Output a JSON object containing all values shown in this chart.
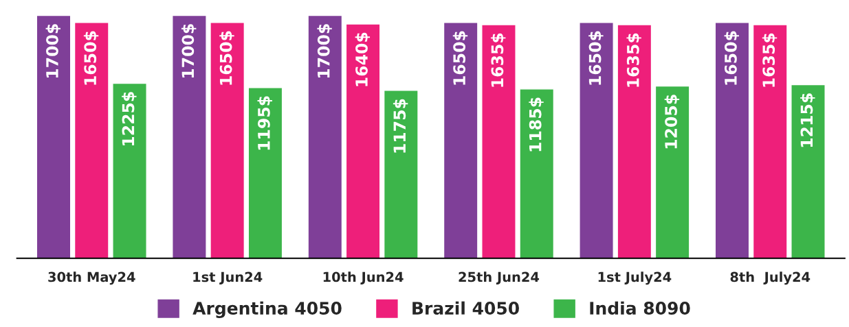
{
  "chart_data": {
    "type": "bar",
    "categories": [
      "30th May24",
      "1st Jun24",
      "10th Jun24",
      "25th Jun24",
      "1st July24",
      "8th  July24"
    ],
    "series": [
      {
        "name": "Argentina 4050",
        "color": "#7f3f98",
        "values": [
          1700,
          1700,
          1700,
          1650,
          1650,
          1650
        ],
        "value_labels": [
          "1700$",
          "1700$",
          "1700$",
          "1650$",
          "1650$",
          "1650$"
        ]
      },
      {
        "name": "Brazil 4050",
        "color": "#ee1f7a",
        "values": [
          1650,
          1650,
          1640,
          1635,
          1635,
          1635
        ],
        "value_labels": [
          "1650$",
          "1650$",
          "1640$",
          "1635$",
          "1635$",
          "1635$"
        ]
      },
      {
        "name": "India 8090",
        "color": "#3cb54a",
        "values": [
          1225,
          1195,
          1175,
          1185,
          1205,
          1215
        ],
        "value_labels": [
          "1225$",
          "1195$",
          "1175$",
          "1185$",
          "1205$",
          "1215$"
        ]
      }
    ],
    "legend": "bottom",
    "grid": false,
    "tick_labels": "x"
  }
}
